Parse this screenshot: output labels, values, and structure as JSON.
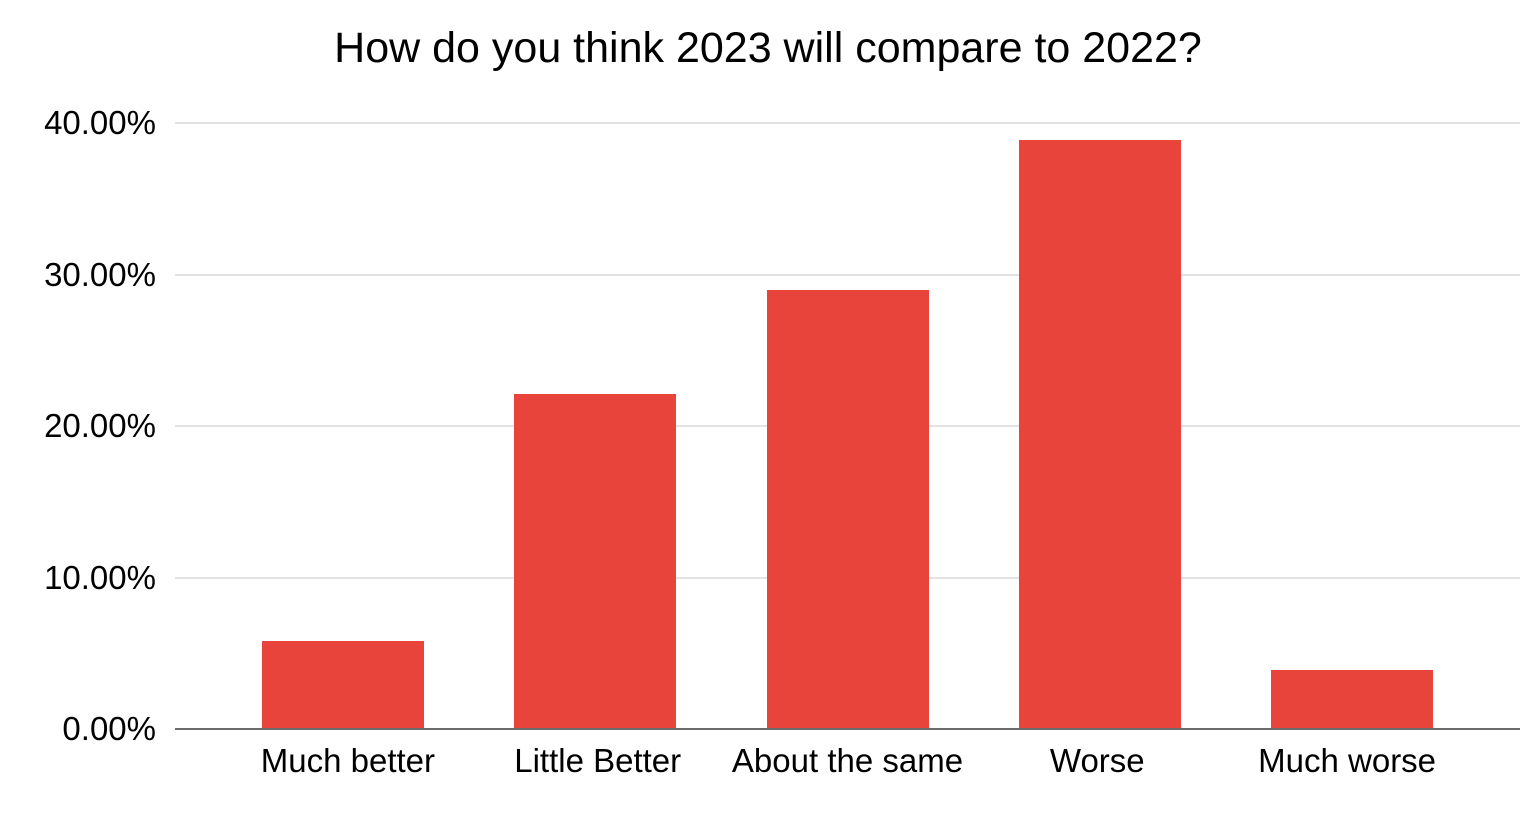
{
  "chart_data": {
    "type": "bar",
    "title": "How do you think 2023 will compare to 2022?",
    "categories": [
      "Much better",
      "Little Better",
      "About the same",
      "Worse",
      "Much worse"
    ],
    "values": [
      5.8,
      22.1,
      29.0,
      38.9,
      3.9
    ],
    "value_unit": "%",
    "ylim": [
      0,
      40
    ],
    "ytick_labels": [
      "40.00%",
      "30.00%",
      "20.00%",
      "10.00%",
      "0.00%"
    ],
    "grid": "horizontal gridlines at 10% intervals",
    "legend": "none",
    "colors": {
      "bar": "#e8443c",
      "gridline": "#e2e2e2",
      "axis_line": "#6b6b6b",
      "background": "#ffffff",
      "text": "#000000"
    }
  }
}
